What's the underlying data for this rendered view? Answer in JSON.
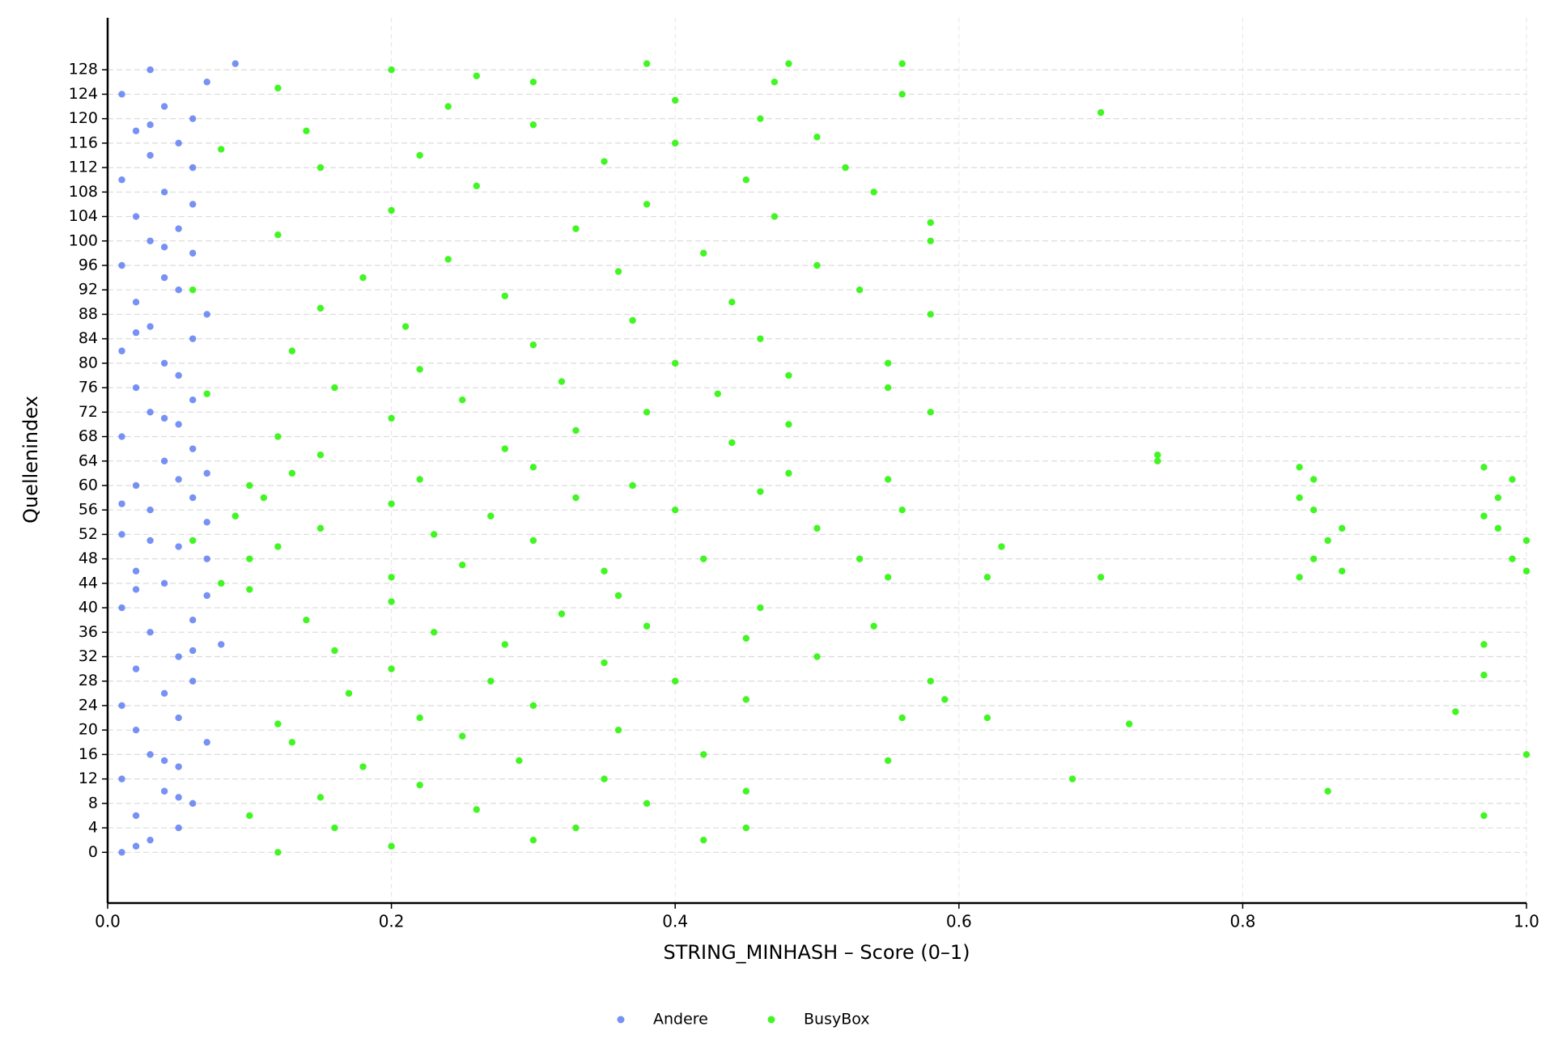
{
  "chart_data": {
    "type": "scatter",
    "xlabel": "STRING_MINHASH – Score (0–1)",
    "ylabel": "Quellenindex",
    "xlim": [
      0,
      1
    ],
    "ylim": [
      -8.3,
      136.5
    ],
    "xticks": [
      {
        "value": 0,
        "label": "0.0"
      },
      0.2,
      0.4,
      0.6,
      0.8,
      {
        "value": 1,
        "label": "1.0"
      }
    ],
    "yticks": [
      0,
      4,
      8,
      12,
      16,
      20,
      24,
      28,
      32,
      36,
      40,
      44,
      48,
      52,
      56,
      60,
      64,
      68,
      72,
      76,
      80,
      84,
      88,
      92,
      96,
      100,
      104,
      108,
      112,
      116,
      120,
      124,
      128
    ],
    "grid": true,
    "legend": "bottom",
    "series": [
      {
        "name": "Andere",
        "color": "#4a6cf0",
        "x": [
          0.01,
          0.03,
          0.05,
          0.02,
          0.06,
          0.04,
          0.01,
          0.05,
          0.03,
          0.07,
          0.02,
          0.05,
          0.01,
          0.04,
          0.06,
          0.02,
          0.05,
          0.08,
          0.03,
          0.06,
          0.01,
          0.07,
          0.04,
          0.02,
          0.07,
          0.05,
          0.01,
          0.07,
          0.03,
          0.06,
          0.02,
          0.07,
          0.04,
          0.06,
          0.01,
          0.05,
          0.03,
          0.06,
          0.02,
          0.05,
          0.04,
          0.01,
          0.06,
          0.03,
          0.07,
          0.02,
          0.05,
          0.04,
          0.01,
          0.06,
          0.03,
          0.05,
          0.02,
          0.06,
          0.04,
          0.01,
          0.06,
          0.03,
          0.05,
          0.02,
          0.06,
          0.04,
          0.01,
          0.07,
          0.03,
          0.09,
          0.02,
          0.04,
          0.06,
          0.03,
          0.05,
          0.02,
          0.04,
          0.03,
          0.01,
          0.02,
          0.05,
          0.04
        ],
        "values": [
          0,
          2,
          4,
          6,
          8,
          10,
          12,
          14,
          16,
          18,
          20,
          22,
          24,
          26,
          28,
          30,
          32,
          34,
          36,
          38,
          40,
          42,
          44,
          46,
          48,
          50,
          52,
          54,
          56,
          58,
          60,
          62,
          64,
          66,
          68,
          70,
          72,
          74,
          76,
          78,
          80,
          82,
          84,
          86,
          88,
          90,
          92,
          94,
          96,
          98,
          100,
          102,
          104,
          106,
          108,
          110,
          112,
          114,
          116,
          118,
          120,
          122,
          124,
          126,
          128,
          129,
          1,
          15,
          33,
          51,
          61,
          85,
          99,
          119,
          57,
          43,
          9,
          71
        ]
      },
      {
        "name": "BusyBox",
        "color": "#2ef50c",
        "x": [
          0.12,
          0.2,
          0.3,
          0.42,
          0.16,
          0.33,
          0.45,
          0.1,
          0.26,
          0.38,
          0.15,
          0.45,
          0.22,
          0.35,
          0.86,
          0.97,
          0.18,
          0.29,
          0.42,
          0.55,
          1.0,
          0.68,
          0.13,
          0.25,
          0.36,
          0.12,
          0.22,
          0.56,
          0.62,
          0.72,
          0.95,
          0.3,
          0.45,
          0.59,
          0.17,
          0.27,
          0.4,
          0.58,
          0.97,
          0.2,
          0.35,
          0.5,
          0.16,
          0.28,
          0.45,
          0.97,
          0.23,
          0.38,
          0.54,
          0.14,
          0.32,
          0.46,
          0.2,
          0.36,
          0.1,
          0.15,
          0.28,
          0.44,
          0.12,
          0.33,
          0.48,
          0.2,
          0.38,
          0.58,
          0.25,
          0.43,
          0.16,
          0.32,
          0.55,
          0.48,
          0.22,
          0.4,
          0.55,
          0.13,
          0.3,
          0.46,
          0.21,
          0.37,
          0.58,
          0.15,
          0.44,
          0.28,
          0.53,
          0.18,
          0.36,
          0.5,
          0.24,
          0.42,
          0.58,
          0.12,
          0.33,
          0.47,
          0.58,
          0.2,
          0.38,
          0.54,
          0.26,
          0.45,
          0.15,
          0.35,
          0.52,
          0.22,
          0.4,
          0.5,
          0.14,
          0.3,
          0.46,
          0.7,
          0.24,
          0.4,
          0.56,
          0.12,
          0.3,
          0.47,
          0.2,
          0.38,
          0.56,
          0.48,
          0.26,
          0.08,
          0.06,
          0.07,
          0.08,
          0.2,
          0.35,
          0.55,
          0.62,
          0.7,
          0.84,
          0.87,
          1.0,
          0.1,
          0.25,
          0.42,
          0.53,
          0.85,
          0.99,
          0.12,
          0.3,
          0.63,
          0.86,
          1.0,
          0.15,
          0.23,
          0.5,
          0.87,
          0.98,
          0.09,
          0.27,
          0.4,
          0.56,
          0.97,
          0.85,
          0.11,
          0.2,
          0.33,
          0.46,
          0.98,
          0.84,
          0.1,
          0.22,
          0.37,
          0.55,
          0.85,
          0.99,
          0.13,
          0.3,
          0.48,
          0.84,
          0.97,
          0.74,
          0.74,
          0.06
        ],
        "values": [
          0,
          1,
          2,
          2,
          4,
          4,
          4,
          6,
          7,
          8,
          9,
          10,
          11,
          12,
          10,
          6,
          14,
          15,
          16,
          15,
          16,
          12,
          18,
          19,
          20,
          21,
          22,
          22,
          22,
          21,
          23,
          24,
          25,
          25,
          26,
          28,
          28,
          28,
          29,
          30,
          31,
          32,
          33,
          34,
          35,
          34,
          36,
          37,
          37,
          38,
          39,
          40,
          41,
          42,
          43,
          65,
          66,
          67,
          68,
          69,
          70,
          71,
          72,
          72,
          74,
          75,
          76,
          77,
          76,
          78,
          79,
          80,
          80,
          82,
          83,
          84,
          86,
          87,
          88,
          89,
          90,
          91,
          92,
          94,
          95,
          96,
          97,
          98,
          100,
          101,
          102,
          104,
          103,
          105,
          106,
          108,
          109,
          110,
          112,
          113,
          112,
          114,
          116,
          117,
          118,
          119,
          120,
          121,
          122,
          123,
          124,
          125,
          126,
          126,
          128,
          129,
          129,
          129,
          127,
          115,
          92,
          75,
          44,
          45,
          46,
          45,
          45,
          45,
          45,
          46,
          46,
          48,
          47,
          48,
          48,
          48,
          48,
          50,
          51,
          50,
          51,
          51,
          53,
          52,
          53,
          53,
          53,
          55,
          55,
          56,
          56,
          55,
          56,
          58,
          57,
          58,
          59,
          58,
          58,
          60,
          61,
          60,
          61,
          61,
          61,
          62,
          63,
          62,
          63,
          63,
          64,
          65,
          51
        ]
      }
    ]
  }
}
